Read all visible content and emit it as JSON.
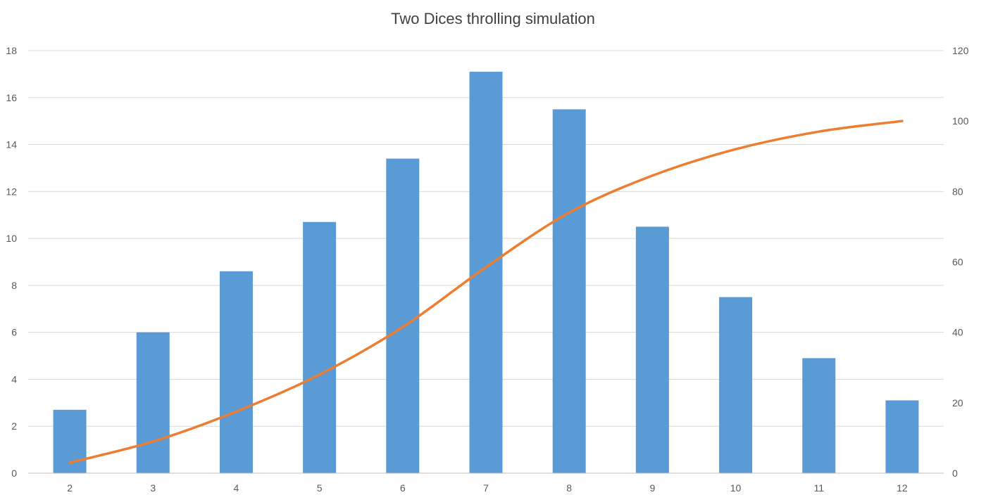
{
  "chart_data": {
    "type": "bar",
    "title": "Two Dices throlling simulation",
    "xlabel": "",
    "ylabel": "",
    "y2label": "",
    "categories": [
      "2",
      "3",
      "4",
      "5",
      "6",
      "7",
      "8",
      "9",
      "10",
      "11",
      "12"
    ],
    "ylim": [
      0,
      18
    ],
    "yticks": [
      0,
      2,
      4,
      6,
      8,
      10,
      12,
      14,
      16,
      18
    ],
    "y2lim": [
      0,
      120
    ],
    "y2ticks": [
      0,
      20,
      40,
      60,
      80,
      100,
      120
    ],
    "grid": true,
    "legend": "none",
    "series": [
      {
        "type": "bar",
        "axis": "left",
        "color": "#5b9bd5",
        "values": [
          2.7,
          6.0,
          8.6,
          10.7,
          13.4,
          17.1,
          15.5,
          10.5,
          7.5,
          4.9,
          3.1
        ]
      },
      {
        "type": "line",
        "axis": "right",
        "color": "#ed7d31",
        "values": [
          3,
          9,
          17.5,
          28,
          41.5,
          58.5,
          74,
          84.5,
          92,
          97,
          100
        ]
      }
    ]
  }
}
